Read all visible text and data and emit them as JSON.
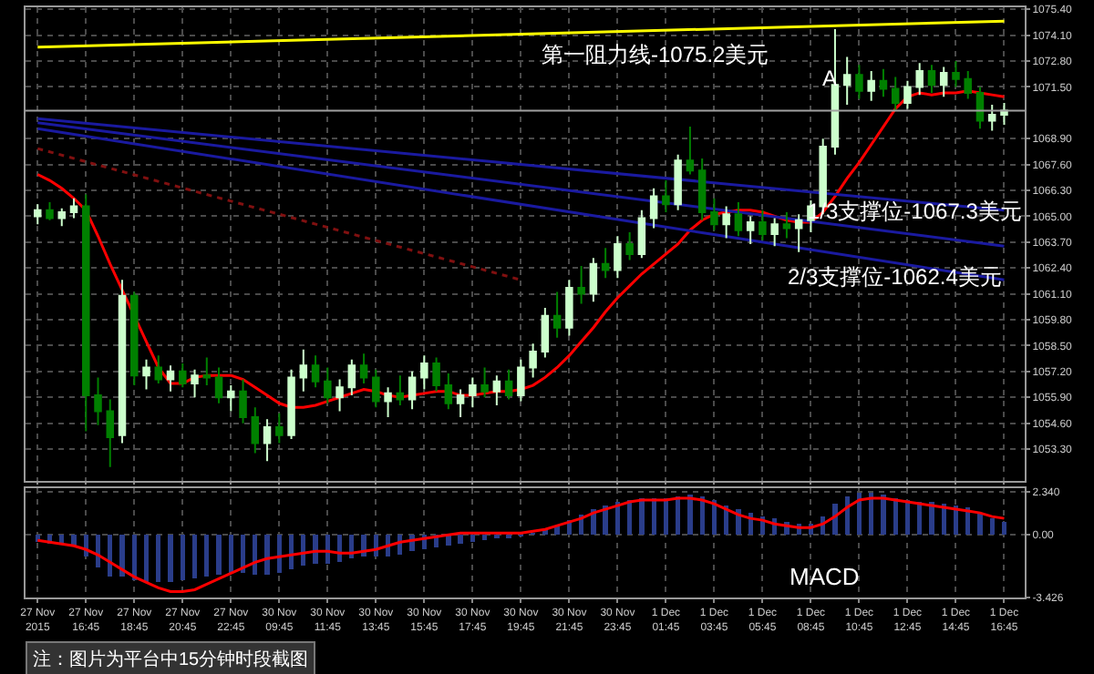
{
  "chart_data": [
    {
      "type": "candlestick",
      "categories": [
        "27 Nov 2015",
        null,
        null,
        null,
        "27 Nov 16:45",
        null,
        null,
        null,
        "27 Nov 18:45",
        null,
        null,
        null,
        "27 Nov 20:45",
        null,
        null,
        null,
        "27 Nov 22:45",
        null,
        null,
        null,
        "30 Nov 09:45",
        null,
        null,
        null,
        "30 Nov 11:45",
        null,
        null,
        null,
        "30 Nov 13:45",
        null,
        null,
        null,
        "30 Nov 15:45",
        null,
        null,
        null,
        "30 Nov 17:45",
        null,
        null,
        null,
        "30 Nov 19:45",
        null,
        null,
        null,
        "30 Nov 21:45",
        null,
        null,
        null,
        "30 Nov 23:45",
        null,
        null,
        null,
        "1 Dec 01:45",
        null,
        null,
        null,
        "1 Dec 03:45",
        null,
        null,
        null,
        "1 Dec 05:45",
        null,
        null,
        null,
        "1 Dec 08:45",
        null,
        null,
        null,
        "1 Dec 10:45",
        null,
        null,
        null,
        "1 Dec 12:45",
        null,
        null,
        null,
        "1 Dec 14:45",
        null,
        null,
        null,
        "1 Dec 16:45"
      ],
      "ohlc": [
        [
          1065.0,
          1065.6,
          1064.6,
          1065.3
        ],
        [
          1065.3,
          1065.7,
          1064.8,
          1064.9
        ],
        [
          1064.9,
          1065.4,
          1064.5,
          1065.2
        ],
        [
          1065.2,
          1065.9,
          1064.9,
          1065.5
        ],
        [
          1065.5,
          1066.1,
          1054.2,
          1056.0
        ],
        [
          1056.0,
          1056.9,
          1054.5,
          1055.2
        ],
        [
          1055.2,
          1055.8,
          1052.4,
          1053.9
        ],
        [
          1054.0,
          1061.8,
          1053.6,
          1061.0
        ],
        [
          1061.0,
          1061.2,
          1056.5,
          1057.0
        ],
        [
          1057.0,
          1057.8,
          1056.3,
          1057.4
        ],
        [
          1057.4,
          1058.0,
          1056.6,
          1056.8
        ],
        [
          1056.8,
          1057.5,
          1056.2,
          1057.2
        ],
        [
          1057.2,
          1057.6,
          1056.4,
          1056.6
        ],
        [
          1056.6,
          1057.3,
          1055.9,
          1057.0
        ],
        [
          1057.0,
          1057.9,
          1056.5,
          1056.9
        ],
        [
          1056.9,
          1057.4,
          1055.6,
          1055.9
        ],
        [
          1055.9,
          1056.5,
          1055.2,
          1056.2
        ],
        [
          1056.2,
          1056.8,
          1054.6,
          1054.9
        ],
        [
          1054.9,
          1055.4,
          1053.1,
          1053.6
        ],
        [
          1053.6,
          1054.8,
          1052.7,
          1054.4
        ],
        [
          1054.4,
          1055.1,
          1053.6,
          1054.0
        ],
        [
          1054.0,
          1057.3,
          1053.8,
          1056.9
        ],
        [
          1056.9,
          1058.3,
          1056.2,
          1057.5
        ],
        [
          1057.5,
          1058.0,
          1056.4,
          1056.7
        ],
        [
          1056.7,
          1057.4,
          1055.6,
          1055.9
        ],
        [
          1055.9,
          1056.8,
          1055.2,
          1056.4
        ],
        [
          1056.4,
          1057.8,
          1056.0,
          1057.5
        ],
        [
          1057.5,
          1058.1,
          1056.6,
          1056.9
        ],
        [
          1056.9,
          1057.3,
          1055.4,
          1055.7
        ],
        [
          1055.7,
          1056.4,
          1054.9,
          1056.1
        ],
        [
          1056.1,
          1057.0,
          1055.5,
          1055.8
        ],
        [
          1055.8,
          1057.2,
          1055.3,
          1056.9
        ],
        [
          1056.9,
          1058.0,
          1056.3,
          1057.6
        ],
        [
          1057.6,
          1057.9,
          1056.2,
          1056.5
        ],
        [
          1056.5,
          1057.1,
          1055.3,
          1055.6
        ],
        [
          1055.6,
          1056.3,
          1054.9,
          1056.0
        ],
        [
          1056.0,
          1056.9,
          1055.4,
          1056.5
        ],
        [
          1056.5,
          1057.4,
          1055.9,
          1056.2
        ],
        [
          1056.2,
          1057.0,
          1055.5,
          1056.7
        ],
        [
          1056.7,
          1057.3,
          1055.8,
          1056.0
        ],
        [
          1056.0,
          1057.8,
          1055.7,
          1057.4
        ],
        [
          1057.4,
          1058.6,
          1056.9,
          1058.2
        ],
        [
          1058.2,
          1060.4,
          1057.9,
          1060.0
        ],
        [
          1060.0,
          1061.2,
          1058.9,
          1059.4
        ],
        [
          1059.4,
          1061.8,
          1059.0,
          1061.4
        ],
        [
          1061.4,
          1062.5,
          1060.6,
          1061.1
        ],
        [
          1061.1,
          1062.9,
          1060.7,
          1062.6
        ],
        [
          1062.6,
          1063.4,
          1061.9,
          1062.3
        ],
        [
          1062.3,
          1064.0,
          1061.9,
          1063.6
        ],
        [
          1063.6,
          1064.2,
          1062.8,
          1063.1
        ],
        [
          1063.1,
          1065.3,
          1062.9,
          1064.9
        ],
        [
          1064.9,
          1066.4,
          1064.4,
          1066.0
        ],
        [
          1066.0,
          1066.8,
          1065.2,
          1065.6
        ],
        [
          1065.6,
          1068.1,
          1065.3,
          1067.8
        ],
        [
          1067.8,
          1069.5,
          1067.1,
          1067.3
        ],
        [
          1067.3,
          1067.9,
          1064.8,
          1065.2
        ],
        [
          1065.2,
          1065.9,
          1064.3,
          1064.6
        ],
        [
          1064.6,
          1065.5,
          1063.9,
          1065.1
        ],
        [
          1065.1,
          1065.7,
          1064.0,
          1064.3
        ],
        [
          1064.3,
          1065.0,
          1063.6,
          1064.7
        ],
        [
          1064.7,
          1065.3,
          1063.8,
          1064.1
        ],
        [
          1064.1,
          1064.9,
          1063.5,
          1064.6
        ],
        [
          1064.6,
          1065.2,
          1063.9,
          1064.4
        ],
        [
          1064.4,
          1065.1,
          1063.2,
          1064.8
        ],
        [
          1064.8,
          1065.8,
          1064.2,
          1065.5
        ],
        [
          1065.5,
          1068.9,
          1065.1,
          1068.5
        ],
        [
          1068.5,
          1074.4,
          1068.1,
          1071.6
        ],
        [
          1071.6,
          1073.0,
          1070.6,
          1072.1
        ],
        [
          1072.1,
          1072.6,
          1070.9,
          1071.3
        ],
        [
          1071.3,
          1072.3,
          1070.8,
          1071.8
        ],
        [
          1071.8,
          1072.4,
          1071.0,
          1071.4
        ],
        [
          1071.4,
          1072.0,
          1070.3,
          1070.7
        ],
        [
          1070.7,
          1071.8,
          1070.4,
          1071.5
        ],
        [
          1071.5,
          1072.7,
          1071.1,
          1072.3
        ],
        [
          1072.3,
          1072.6,
          1071.2,
          1071.6
        ],
        [
          1071.6,
          1072.5,
          1071.0,
          1072.2
        ],
        [
          1072.2,
          1072.8,
          1071.5,
          1071.9
        ],
        [
          1071.9,
          1072.3,
          1070.9,
          1071.2
        ],
        [
          1071.2,
          1071.5,
          1069.4,
          1069.8
        ],
        [
          1069.8,
          1070.6,
          1069.3,
          1070.1
        ],
        [
          1070.1,
          1070.7,
          1069.6,
          1070.3
        ]
      ],
      "colors": [
        "#ccffcc",
        "#008000",
        "#ccffcc",
        "#ccffcc",
        "#008000",
        "#008000",
        "#008000",
        "#ccffcc",
        "#008000",
        "#ccffcc",
        "#008000",
        "#ccffcc",
        "#008000",
        "#ccffcc",
        "#008000",
        "#008000",
        "#ccffcc",
        "#008000",
        "#008000",
        "#ccffcc",
        "#008000",
        "#ccffcc",
        "#ccffcc",
        "#008000",
        "#008000",
        "#ccffcc",
        "#ccffcc",
        "#008000",
        "#008000",
        "#ccffcc",
        "#008000",
        "#ccffcc",
        "#ccffcc",
        "#008000",
        "#008000",
        "#ccffcc",
        "#ccffcc",
        "#008000",
        "#ccffcc",
        "#008000",
        "#ccffcc",
        "#ccffcc",
        "#ccffcc",
        "#008000",
        "#ccffcc",
        "#008000",
        "#ccffcc",
        "#008000",
        "#ccffcc",
        "#008000",
        "#ccffcc",
        "#ccffcc",
        "#008000",
        "#ccffcc",
        "#008000",
        "#008000",
        "#008000",
        "#ccffcc",
        "#008000",
        "#ccffcc",
        "#008000",
        "#ccffcc",
        "#008000",
        "#ccffcc",
        "#ccffcc",
        "#ccffcc",
        "#ccffcc",
        "#ccffcc",
        "#008000",
        "#ccffcc",
        "#008000",
        "#008000",
        "#ccffcc",
        "#ccffcc",
        "#008000",
        "#ccffcc",
        "#008000",
        "#008000",
        "#008000",
        "#ccffcc",
        "#ccffcc"
      ],
      "series": [
        {
          "type": "line",
          "color": "#ff0000",
          "values": [
            1067.1,
            1066.8,
            1066.4,
            1065.9,
            1065.3,
            1064.0,
            1062.6,
            1061.3,
            1060.0,
            1058.7,
            1057.4,
            1056.6,
            1056.6,
            1056.9,
            1057.0,
            1057.0,
            1057.0,
            1056.8,
            1056.4,
            1056.0,
            1055.6,
            1055.4,
            1055.4,
            1055.5,
            1055.7,
            1055.9,
            1056.1,
            1056.3,
            1056.2,
            1056.0,
            1055.9,
            1056.0,
            1056.1,
            1056.2,
            1056.2,
            1056.0,
            1056.0,
            1056.1,
            1056.2,
            1056.2,
            1056.3,
            1056.5,
            1056.9,
            1057.4,
            1058.0,
            1058.7,
            1059.4,
            1060.2,
            1060.9,
            1061.5,
            1062.1,
            1062.6,
            1063.1,
            1063.6,
            1064.3,
            1064.8,
            1065.1,
            1065.2,
            1065.3,
            1065.3,
            1065.2,
            1065.0,
            1064.8,
            1064.7,
            1064.7,
            1065.2,
            1066.0,
            1066.9,
            1067.7,
            1068.6,
            1069.5,
            1070.4,
            1071.0,
            1071.2,
            1071.1,
            1071.2,
            1071.2,
            1071.3,
            1071.2,
            1071.1,
            1071.0
          ]
        },
        {
          "type": "line",
          "color": "#ffff00",
          "x": [
            "27 Nov 2015",
            "1 Dec 16:45"
          ],
          "values": [
            1073.5,
            1074.8
          ]
        },
        {
          "type": "line",
          "color": "#1a1aa0",
          "x": [
            "27 Nov 2015",
            "1 Dec 16:45"
          ],
          "values": [
            1069.9,
            1065.3
          ]
        },
        {
          "type": "line",
          "color": "#1a1aa0",
          "x": [
            "27 Nov 2015",
            "1 Dec 16:45"
          ],
          "values": [
            1069.7,
            1063.5
          ]
        },
        {
          "type": "line",
          "color": "#1a1aa0",
          "x": [
            "27 Nov 2015",
            "1 Dec 16:45"
          ],
          "values": [
            1069.4,
            1061.8
          ]
        },
        {
          "type": "line",
          "color": "#801010",
          "line_style": "dotted",
          "x": [
            "27 Nov 2015",
            "30 Nov 19:45"
          ],
          "values": [
            1068.4,
            1061.8
          ]
        }
      ],
      "ylim": [
        1051.7,
        1075.5
      ],
      "yticks": [
        {
          "value": 1075.4,
          "label": "1075.40"
        },
        {
          "value": 1074.1,
          "label": "1074.10"
        },
        {
          "value": 1072.8,
          "label": "1072.80"
        },
        {
          "value": 1071.5,
          "label": "1071.50"
        },
        {
          "value": 1068.9,
          "label": "1068.90"
        },
        {
          "value": 1067.6,
          "label": "1067.60"
        },
        {
          "value": 1066.3,
          "label": "1066.30"
        },
        {
          "value": 1065.0,
          "label": "1065.00"
        },
        {
          "value": 1063.7,
          "label": "1063.70"
        },
        {
          "value": 1062.4,
          "label": "1062.40"
        },
        {
          "value": 1061.1,
          "label": "1061.10"
        },
        {
          "value": 1059.8,
          "label": "1059.80"
        },
        {
          "value": 1058.5,
          "label": "1058.50"
        },
        {
          "value": 1057.2,
          "label": "1057.20"
        },
        {
          "value": 1055.9,
          "label": "1055.90"
        },
        {
          "value": 1054.6,
          "label": "1054.60"
        },
        {
          "value": 1053.3,
          "label": "1053.30"
        }
      ],
      "ref_lines": [
        {
          "axis": "y",
          "value": 1070.3,
          "color": "#a0a0a0"
        }
      ],
      "annotations": [
        "第一阻力线-1075.2美元",
        "1/3支撑位-1067.3美元",
        "2/3支撑位-1062.4美元",
        "A"
      ],
      "grid": true,
      "tick_labels": "y"
    },
    {
      "type": "bar",
      "categories": [
        "27 Nov 2015",
        null,
        null,
        null,
        "27 Nov 16:45",
        null,
        null,
        null,
        "27 Nov 18:45",
        null,
        null,
        null,
        "27 Nov 20:45",
        null,
        null,
        null,
        "27 Nov 22:45",
        null,
        null,
        null,
        "30 Nov 09:45",
        null,
        null,
        null,
        "30 Nov 11:45",
        null,
        null,
        null,
        "30 Nov 13:45",
        null,
        null,
        null,
        "30 Nov 15:45",
        null,
        null,
        null,
        "30 Nov 17:45",
        null,
        null,
        null,
        "30 Nov 19:45",
        null,
        null,
        null,
        "30 Nov 21:45",
        null,
        null,
        null,
        "30 Nov 23:45",
        null,
        null,
        null,
        "1 Dec 01:45",
        null,
        null,
        null,
        "1 Dec 03:45",
        null,
        null,
        null,
        "1 Dec 05:45",
        null,
        null,
        null,
        "1 Dec 08:45",
        null,
        null,
        null,
        "1 Dec 10:45",
        null,
        null,
        null,
        "1 Dec 12:45",
        null,
        null,
        null,
        "1 Dec 14:45",
        null,
        null,
        null,
        "1 Dec 16:45"
      ],
      "series": [
        {
          "type": "bar",
          "color": "#2a3d8a",
          "values": [
            -0.4,
            -0.5,
            -0.5,
            -0.6,
            -1.2,
            -1.8,
            -2.3,
            -2.3,
            -2.5,
            -2.6,
            -2.6,
            -2.6,
            -2.5,
            -2.4,
            -2.3,
            -2.2,
            -2.1,
            -2.1,
            -2.2,
            -2.2,
            -2.1,
            -1.9,
            -1.7,
            -1.6,
            -1.6,
            -1.5,
            -1.3,
            -1.2,
            -1.2,
            -1.2,
            -1.1,
            -0.9,
            -0.8,
            -0.7,
            -0.6,
            -0.5,
            -0.4,
            -0.3,
            -0.2,
            -0.2,
            -0.1,
            0.1,
            0.3,
            0.5,
            0.8,
            1.1,
            1.4,
            1.6,
            1.8,
            1.9,
            2.0,
            2.0,
            2.0,
            2.1,
            2.2,
            2.1,
            1.9,
            1.6,
            1.4,
            1.2,
            1.0,
            0.9,
            0.7,
            0.6,
            0.6,
            1.0,
            1.7,
            2.1,
            2.3,
            2.3,
            2.2,
            2.0,
            1.9,
            1.8,
            1.8,
            1.7,
            1.6,
            1.5,
            1.2,
            0.9,
            0.7
          ]
        },
        {
          "type": "line",
          "color": "#ff0000",
          "values": [
            -0.3,
            -0.4,
            -0.5,
            -0.6,
            -0.8,
            -1.1,
            -1.5,
            -1.9,
            -2.3,
            -2.6,
            -2.9,
            -3.1,
            -3.1,
            -3.0,
            -2.7,
            -2.4,
            -2.1,
            -1.8,
            -1.5,
            -1.3,
            -1.2,
            -1.1,
            -1.0,
            -0.9,
            -0.9,
            -1.0,
            -1.0,
            -0.9,
            -0.8,
            -0.6,
            -0.4,
            -0.3,
            -0.2,
            -0.1,
            0.0,
            0.1,
            0.1,
            0.1,
            0.1,
            0.1,
            0.1,
            0.2,
            0.3,
            0.5,
            0.7,
            0.9,
            1.2,
            1.4,
            1.6,
            1.8,
            1.9,
            1.9,
            1.9,
            2.0,
            2.0,
            1.9,
            1.7,
            1.4,
            1.1,
            0.9,
            0.8,
            0.6,
            0.5,
            0.4,
            0.4,
            0.6,
            1.0,
            1.5,
            1.9,
            2.0,
            2.0,
            1.9,
            1.8,
            1.7,
            1.6,
            1.5,
            1.4,
            1.3,
            1.2,
            1.0,
            0.9
          ]
        }
      ],
      "ylim": [
        -3.426,
        2.55
      ],
      "yticks": [
        {
          "value": 2.34,
          "label": "2.340"
        },
        {
          "value": 0,
          "label": "0.00"
        },
        {
          "value": -3.426,
          "label": "-3.426"
        }
      ],
      "annotations": [
        "MACD",
        "注：图片为平台中15分钟时段截图"
      ],
      "grid": true
    }
  ]
}
